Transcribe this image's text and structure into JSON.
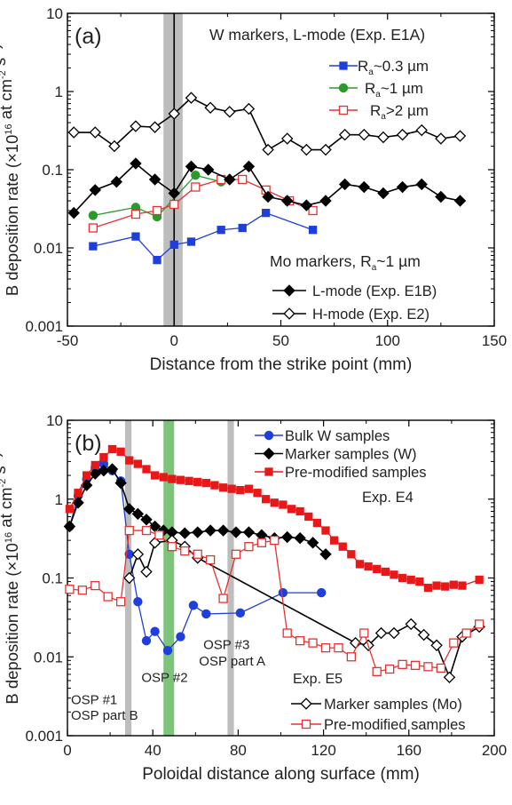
{
  "chart_data": [
    {
      "type": "scatter",
      "panel_label": "(a)",
      "xlabel": "Distance from the strike point (mm)",
      "ylabel_html": "B deposition rate (×10<sup>16</sup> at cm<sup>-2</sup> s<sup>-1</sup>)",
      "y_scale": "log",
      "xlim": [
        -50,
        150
      ],
      "ylim": [
        0.001,
        10
      ],
      "xticks": [
        -50,
        0,
        50,
        100,
        150
      ],
      "yticks": [
        0.001,
        0.01,
        0.1,
        1,
        10
      ],
      "ytick_labels": [
        "0.001",
        "0.01",
        "0.1",
        "1",
        "10"
      ],
      "grid": false,
      "vertical_lines": [
        0
      ],
      "shaded_bands": [
        [
          -5,
          4
        ]
      ],
      "legend_groups": [
        {
          "title_html": "W markers, L-mode (Exp. E1A)",
          "position": "top-right"
        },
        {
          "title_html": "Mo markers, R<tspan font-size='10' dy='4'>a</tspan><tspan dy='-4'>~1 µm</tspan>",
          "position": "bottom-right"
        }
      ],
      "series": [
        {
          "name_html": "R<tspan font-size='10' dy='4'>a</tspan><tspan dy='-4'>~0.3 µm</tspan>",
          "color": "#1f3fdc",
          "marker": "square-filled",
          "legend_group": 0,
          "x": [
            -38,
            -18,
            -8,
            0,
            8,
            22,
            32,
            43,
            65
          ],
          "y": [
            0.0105,
            0.014,
            0.007,
            0.011,
            0.012,
            0.017,
            0.018,
            0.028,
            0.017
          ]
        },
        {
          "name_html": "R<tspan font-size='10' dy='4'>a</tspan><tspan dy='-4'>~1 µm</tspan>",
          "color": "#2a9a2a",
          "marker": "circle-filled",
          "legend_group": 0,
          "x": [
            -38,
            -18,
            -8,
            10,
            22
          ],
          "y": [
            0.026,
            0.033,
            0.025,
            0.085,
            0.07
          ]
        },
        {
          "name_html": "R<tspan font-size='10' dy='4'>a</tspan><tspan dy='-4'>&gt;2 µm</tspan>",
          "color": "#e83232",
          "marker": "square-open",
          "legend_group": 0,
          "x": [
            -38,
            -18,
            -8,
            0,
            10,
            22,
            32,
            43,
            54,
            65
          ],
          "y": [
            0.018,
            0.027,
            0.03,
            0.036,
            0.06,
            0.075,
            0.075,
            0.055,
            0.04,
            0.03
          ]
        },
        {
          "name": "L-mode (Exp. E1B)",
          "color": "#000000",
          "marker": "diamond-filled",
          "legend_group": 1,
          "x": [
            -47,
            -37,
            -27,
            -18,
            -9,
            0,
            8,
            16,
            26,
            35,
            44,
            53,
            62,
            71,
            80,
            89,
            98,
            107,
            116,
            125,
            134
          ],
          "y": [
            0.028,
            0.055,
            0.07,
            0.12,
            0.075,
            0.05,
            0.11,
            0.1,
            0.075,
            0.11,
            0.045,
            0.04,
            0.035,
            0.04,
            0.065,
            0.06,
            0.05,
            0.06,
            0.065,
            0.045,
            0.04
          ]
        },
        {
          "name": "H-mode (Exp. E2)",
          "color": "#000000",
          "marker": "diamond-open",
          "legend_group": 1,
          "x": [
            -47,
            -37,
            -28,
            -18,
            -9,
            0,
            8,
            17,
            26,
            35,
            44,
            53,
            62,
            71,
            80,
            89,
            98,
            107,
            116,
            125,
            134
          ],
          "y": [
            0.3,
            0.3,
            0.2,
            0.36,
            0.35,
            0.52,
            0.83,
            0.62,
            0.55,
            0.6,
            0.18,
            0.25,
            0.18,
            0.18,
            0.28,
            0.28,
            0.26,
            0.28,
            0.32,
            0.25,
            0.27
          ]
        }
      ]
    },
    {
      "type": "scatter",
      "panel_label": "(b)",
      "xlabel": "Poloidal distance along surface (mm)",
      "ylabel_html": "B deposition rate (×10<sup>16</sup> at cm<sup>-2</sup> s<sup>-1</sup>)",
      "y_scale": "log",
      "xlim": [
        0,
        200
      ],
      "ylim": [
        0.001,
        10
      ],
      "xticks": [
        0,
        40,
        80,
        120,
        160,
        200
      ],
      "yticks": [
        0.001,
        0.01,
        0.1,
        1,
        10
      ],
      "ytick_labels": [
        "0.001",
        "0.01",
        "0.1",
        "1",
        "10"
      ],
      "grid": false,
      "shaded_bands": [
        {
          "range": [
            27,
            30
          ],
          "color": "#bdbdbd"
        },
        {
          "range": [
            45,
            50
          ],
          "color": "#7dc47a"
        },
        {
          "range": [
            75,
            78
          ],
          "color": "#bdbdbd"
        }
      ],
      "legend_groups": [
        {
          "title_html": "Exp. E4",
          "position": "top-right"
        },
        {
          "title_html": "Exp. E5",
          "position": "bottom-right"
        }
      ],
      "annotations": [
        {
          "text": "OSP #1",
          "x": 0,
          "y": 0.0025
        },
        {
          "text": "OSP part B",
          "x": 0,
          "y": 0.0016
        },
        {
          "text": "OSP #2",
          "x": 33,
          "y": 0.0048
        },
        {
          "text": "OSP #3",
          "x": 62,
          "y": 0.0125
        },
        {
          "text": "OSP part A",
          "x": 60,
          "y": 0.0078
        }
      ],
      "series": [
        {
          "name": "Bulk W samples",
          "color": "#1f3fdc",
          "marker": "circle-filled",
          "legend_group": 0,
          "x": [
            1,
            5,
            9,
            13,
            17,
            21,
            25,
            29,
            33,
            37,
            41,
            47,
            53,
            59,
            65,
            81,
            101,
            119
          ],
          "y": [
            0.45,
            1.1,
            1.8,
            2.5,
            2.8,
            2.3,
            1.7,
            0.2,
            0.05,
            0.016,
            0.021,
            0.012,
            0.018,
            0.045,
            0.035,
            0.036,
            0.065,
            0.065
          ]
        },
        {
          "name": "Marker samples (W)",
          "color": "#000000",
          "marker": "diamond-filled",
          "legend_group": 0,
          "x": [
            1,
            5,
            9,
            13,
            17,
            21,
            25,
            29,
            33,
            37,
            41,
            45,
            49,
            55,
            61,
            67,
            73,
            79,
            85,
            91,
            97,
            103,
            109,
            115,
            121
          ],
          "y": [
            0.45,
            0.9,
            1.5,
            2.1,
            2.3,
            2.4,
            1.6,
            0.75,
            0.65,
            0.55,
            0.45,
            0.4,
            0.38,
            0.37,
            0.38,
            0.4,
            0.4,
            0.38,
            0.38,
            0.35,
            0.32,
            0.33,
            0.32,
            0.28,
            0.2
          ]
        },
        {
          "name": "Pre-modified samples",
          "color": "#e81818",
          "marker": "square-filled",
          "legend_group": 0,
          "x": [
            1,
            5,
            9,
            13,
            17,
            21,
            25,
            29,
            33,
            37,
            41,
            45,
            49,
            53,
            57,
            61,
            65,
            69,
            73,
            77,
            81,
            85,
            89,
            93,
            97,
            101,
            105,
            109,
            113,
            117,
            121,
            125,
            129,
            133,
            137,
            141,
            145,
            149,
            153,
            157,
            161,
            165,
            169,
            173,
            177,
            181,
            185,
            193
          ],
          "y": [
            0.75,
            1.2,
            2.0,
            2.7,
            3.4,
            4.3,
            4.0,
            3.1,
            2.8,
            2.4,
            2.0,
            1.9,
            1.8,
            1.75,
            1.7,
            1.65,
            1.6,
            1.5,
            1.4,
            1.35,
            1.3,
            1.35,
            1.2,
            1.0,
            0.9,
            0.85,
            0.75,
            0.7,
            0.6,
            0.5,
            0.4,
            0.3,
            0.25,
            0.2,
            0.15,
            0.14,
            0.13,
            0.12,
            0.11,
            0.1,
            0.095,
            0.09,
            0.075,
            0.08,
            0.078,
            0.082,
            0.08,
            0.095
          ]
        },
        {
          "name": "Marker samples (Mo)",
          "color": "#000000",
          "marker": "diamond-open",
          "legend_group": 1,
          "x": [
            29,
            33,
            37,
            41,
            49,
            55,
            61,
            135,
            141,
            147,
            153,
            161,
            167,
            173,
            179,
            185,
            193
          ],
          "y": [
            0.1,
            0.2,
            0.12,
            0.28,
            0.3,
            0.25,
            0.18,
            0.015,
            0.014,
            0.02,
            0.02,
            0.026,
            0.019,
            0.014,
            0.0055,
            0.018,
            0.024
          ]
        },
        {
          "name": "Pre-modified samples",
          "color": "#e83232",
          "marker": "square-open",
          "legend_group": 1,
          "x": [
            1,
            7,
            13,
            19,
            25,
            29,
            37,
            43,
            49,
            55,
            61,
            67,
            73,
            79,
            85,
            91,
            97,
            103,
            109,
            115,
            121,
            127,
            133,
            139,
            145,
            151,
            157,
            163,
            169,
            175,
            181,
            187,
            193
          ],
          "y": [
            0.072,
            0.07,
            0.08,
            0.058,
            0.05,
            0.4,
            0.4,
            0.35,
            0.25,
            0.22,
            0.2,
            0.17,
            0.055,
            0.2,
            0.25,
            0.28,
            0.3,
            0.02,
            0.016,
            0.015,
            0.013,
            0.013,
            0.01,
            0.02,
            0.0065,
            0.007,
            0.008,
            0.0078,
            0.0075,
            0.0072,
            0.015,
            0.02,
            0.026
          ]
        }
      ]
    }
  ]
}
